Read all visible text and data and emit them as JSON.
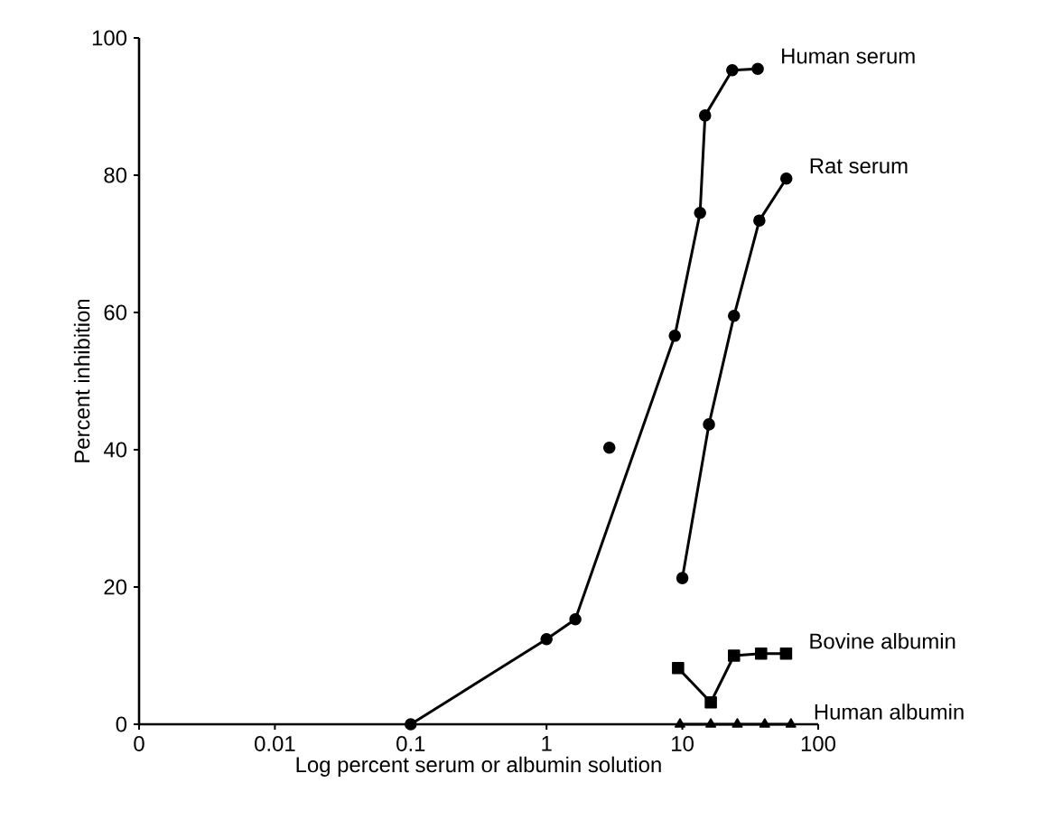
{
  "chart_data": {
    "type": "line",
    "xlabel": "Log percent serum or albumin solution",
    "ylabel": "Percent inhibition",
    "log": "x",
    "xlim": [
      0.001,
      100
    ],
    "ylim": [
      0,
      100
    ],
    "xticks": [
      {
        "value": 0.001,
        "label": "0"
      },
      0.01,
      0.1,
      1,
      10,
      100
    ],
    "yticks": [
      0,
      20,
      40,
      60,
      80,
      100
    ],
    "grid": false,
    "legend": false,
    "line_style": "solid",
    "series": [
      {
        "name": "Human serum",
        "color": "#000000",
        "marker": "circle",
        "x": [
          0.1,
          1,
          1.63,
          8.8,
          13.5,
          14.7,
          23.3,
          35.9
        ],
        "values": [
          0,
          12.4,
          15.3,
          56.6,
          74.5,
          88.7,
          95.3,
          95.5
        ]
      },
      {
        "type": "scatter",
        "color": "#000000",
        "marker": "circle",
        "x": [
          2.9
        ],
        "values": [
          40.3
        ]
      },
      {
        "name": "Rat serum",
        "color": "#000000",
        "marker": "circle",
        "x": [
          10,
          15.7,
          24,
          36.9,
          58.3
        ],
        "values": [
          21.3,
          43.7,
          59.5,
          73.4,
          79.5
        ]
      },
      {
        "name": "Bovine albumin",
        "color": "#000000",
        "marker": "square",
        "x": [
          9.3,
          16.2,
          24,
          38,
          58
        ],
        "values": [
          8.2,
          3.2,
          10,
          10.3,
          10.3
        ]
      },
      {
        "name": "Human albumin",
        "color": "#000000",
        "marker": "triangle",
        "x": [
          9.6,
          16.2,
          25.4,
          40.4,
          63
        ],
        "values": [
          0,
          0,
          0,
          0,
          0
        ]
      }
    ]
  }
}
